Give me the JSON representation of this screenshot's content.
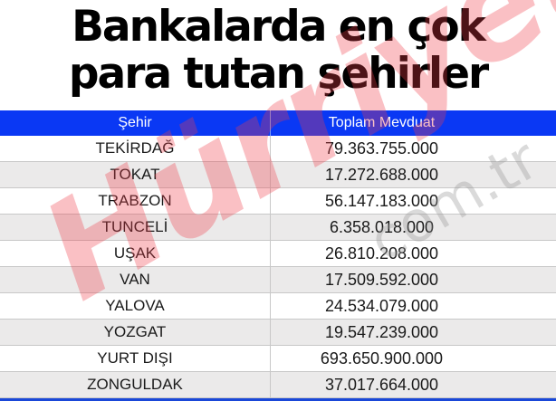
{
  "title": {
    "line1": "Bankalarda en çok",
    "line2": "para tutan şehirler"
  },
  "table": {
    "headers": {
      "city": "Şehir",
      "amount": "Toplam Mevduat"
    },
    "rows": [
      {
        "city": "TEKİRDAĞ",
        "amount": "79.363.755.000"
      },
      {
        "city": "TOKAT",
        "amount": "17.272.688.000"
      },
      {
        "city": "TRABZON",
        "amount": "56.147.183.000"
      },
      {
        "city": "TUNCELİ",
        "amount": "6.358.018.000"
      },
      {
        "city": "UŞAK",
        "amount": "26.810.208.000"
      },
      {
        "city": "VAN",
        "amount": "17.509.592.000"
      },
      {
        "city": "YALOVA",
        "amount": "24.534.079.000"
      },
      {
        "city": "YOZGAT",
        "amount": "19.547.239.000"
      },
      {
        "city": "YURT DIŞI",
        "amount": "693.650.900.000"
      },
      {
        "city": "ZONGULDAK",
        "amount": "37.017.664.000"
      }
    ]
  },
  "watermark": {
    "brand": "Hürriyet",
    "domain": "com.tr"
  },
  "colors": {
    "header_bg": "#0a38f4",
    "header_text": "#ffffff",
    "alt_row_bg": "#ebeaea",
    "watermark_brand": "#f03c46",
    "bottom_bar": "#1a48d8"
  }
}
